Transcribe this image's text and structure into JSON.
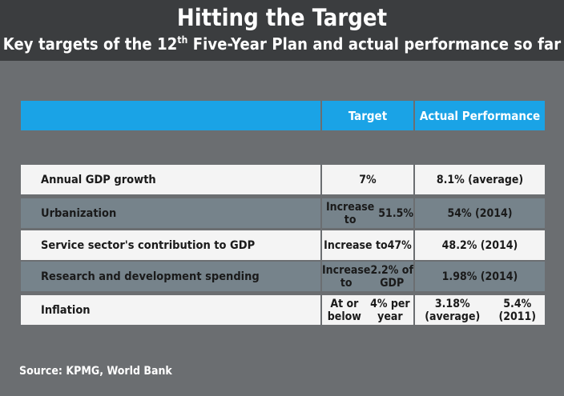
{
  "header": {
    "title": "Hitting the Target",
    "subtitle_part1": "Key targets of the 12",
    "subtitle_sup": "th",
    "subtitle_part2": " Five-Year Plan and actual performance so far"
  },
  "table": {
    "columns": [
      "",
      "Target",
      "Actual Performance"
    ],
    "rows": [
      {
        "label": "Annual GDP growth",
        "target": [
          "7%"
        ],
        "actual": [
          "8.1% (average)"
        ]
      },
      {
        "label": "Urbanization",
        "target": [
          "Increase to",
          "51.5%"
        ],
        "actual": [
          "54% (2014)"
        ]
      },
      {
        "label": "Service sector's contribution to GDP",
        "target": [
          "Increase to",
          "47%"
        ],
        "actual": [
          "48.2% (2014)"
        ]
      },
      {
        "label": "Research and development spending",
        "target": [
          "Increase to",
          "2.2% of GDP"
        ],
        "actual": [
          "1.98% (2014)"
        ]
      },
      {
        "label": "Inflation",
        "target": [
          "At or below",
          "4% per year"
        ],
        "actual": [
          "3.18% (average)",
          "5.4% (2011)"
        ]
      }
    ]
  },
  "source": "Source: KPMG, World Bank",
  "colors": {
    "background": "#6b6e71",
    "header_band": "#3b3d3f",
    "table_header": "#1aa3e6",
    "row_light": "#f4f4f4",
    "row_dark": "#76838b"
  }
}
